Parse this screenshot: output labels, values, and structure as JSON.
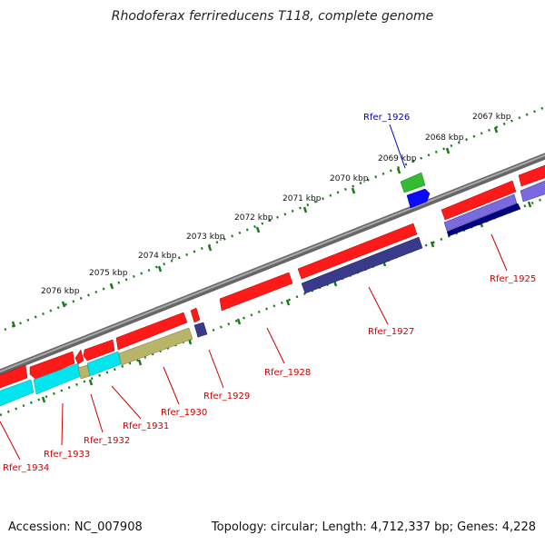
{
  "title": "Rhodoferax ferrireducens T118, complete genome",
  "footer": {
    "accession": "Accession: NC_007908",
    "summary": "Topology: circular; Length: 4,712,337 bp; Genes: 4,228"
  },
  "colors": {
    "backbone": "#808080",
    "kbp_ticks": "#1a7a1a",
    "red_gene": "#ff1a1a",
    "red_label": "#cc0000",
    "blue_label": "#0000cc",
    "cyan_gene": "#00e5ee",
    "olive_gene": "#b8b46a",
    "navy_gene": "#3a3a8a",
    "green_gene": "#33bb33",
    "blue_gene": "#0a0aff",
    "lavender_gene": "#7a6ae0",
    "dark_navy_gene": "#000080"
  },
  "kbp_ticks": [
    "2067 kbp",
    "2068 kbp",
    "2069 kbp",
    "2070 kbp",
    "2071 kbp",
    "2072 kbp",
    "2073 kbp",
    "2074 kbp",
    "2075 kbp",
    "2076 kbp"
  ],
  "gene_labels": [
    {
      "id": "Rfer_1926",
      "color": "blue"
    },
    {
      "id": "Rfer_1925",
      "color": "red"
    },
    {
      "id": "Rfer_1927",
      "color": "red"
    },
    {
      "id": "Rfer_1928",
      "color": "red"
    },
    {
      "id": "Rfer_1929",
      "color": "red"
    },
    {
      "id": "Rfer_1930",
      "color": "red"
    },
    {
      "id": "Rfer_1931",
      "color": "red"
    },
    {
      "id": "Rfer_1932",
      "color": "red"
    },
    {
      "id": "Rfer_1933",
      "color": "red"
    },
    {
      "id": "Rfer_1934",
      "color": "red"
    }
  ]
}
